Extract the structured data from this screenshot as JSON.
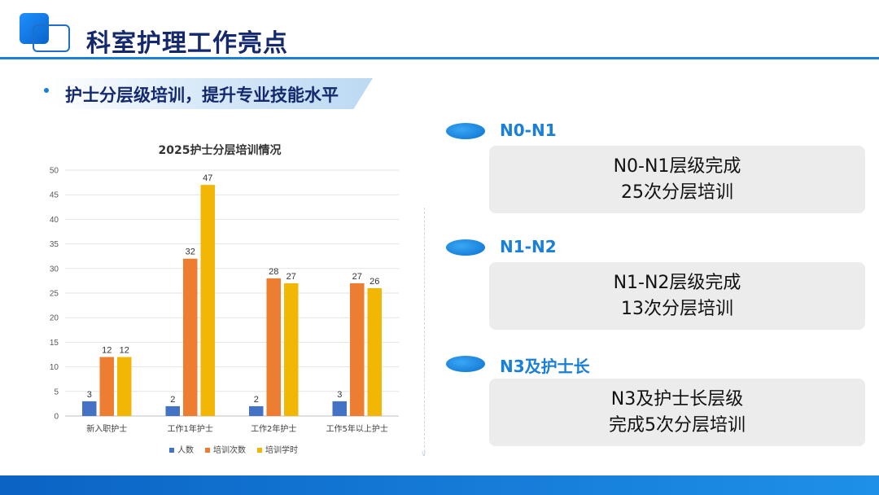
{
  "header": {
    "title": "科室护理工作亮点"
  },
  "subtitle": {
    "bullet": "•",
    "text": "护士分层级培训，提升专业技能水平"
  },
  "chart_data": {
    "type": "bar",
    "title": "2025护士分层培训情况",
    "categories": [
      "新入职护士",
      "工作1年护士",
      "工作2年护士",
      "工作5年以上护士"
    ],
    "series": [
      {
        "name": "人数",
        "values": [
          3,
          2,
          2,
          3
        ],
        "color": "#4472c4"
      },
      {
        "name": "培训次数",
        "values": [
          12,
          32,
          28,
          27
        ],
        "color": "#ed7d31"
      },
      {
        "name": "培训学时",
        "values": [
          12,
          47,
          27,
          26
        ],
        "color": "#f2b705"
      }
    ],
    "ylim": [
      0,
      50
    ],
    "yticks": [
      0,
      5,
      10,
      15,
      20,
      25,
      30,
      35,
      40,
      45,
      50
    ],
    "grid": true,
    "legend": "bottom"
  },
  "levels": [
    {
      "tag": "N0-N1",
      "line1": "N0-N1层级完成",
      "line2": "25次分层培训"
    },
    {
      "tag": "N1-N2",
      "line1": "N1-N2层级完成",
      "line2": "13次分层培训"
    },
    {
      "tag": "N3及护士长",
      "line1": "N3及护士长层级",
      "line2": "完成5次分层培训"
    }
  ],
  "colors": {
    "primary": "#1a7fd6",
    "title": "#14286e",
    "card": "#ececec"
  }
}
